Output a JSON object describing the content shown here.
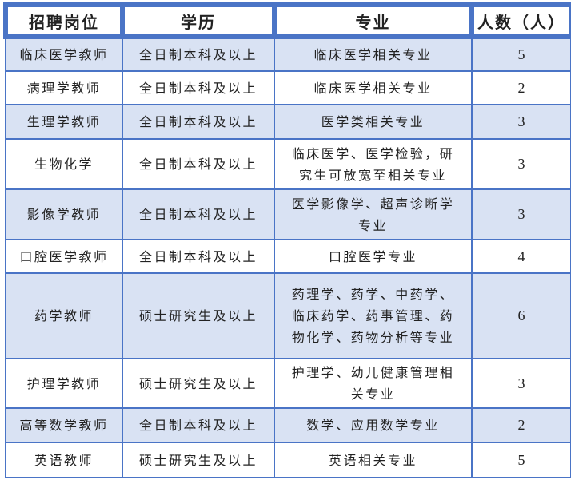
{
  "headers": [
    "招聘岗位",
    "学历",
    "专业",
    "人数（人）"
  ],
  "rows": [
    {
      "position": "临床医学教师",
      "education": "全日制本科及以上",
      "major": [
        "临床医学相关专业"
      ],
      "count": "5"
    },
    {
      "position": "病理学教师",
      "education": "全日制本科及以上",
      "major": [
        "临床医学相关专业"
      ],
      "count": "2"
    },
    {
      "position": "生理学教师",
      "education": "全日制本科及以上",
      "major": [
        "医学类相关专业"
      ],
      "count": "3"
    },
    {
      "position": "生物化学",
      "education": "全日制本科及以上",
      "major": [
        "临床医学、医学检验，研",
        "究生可放宽至相关专业"
      ],
      "count": "3"
    },
    {
      "position": "影像学教师",
      "education": "全日制本科及以上",
      "major": [
        "医学影像学、超声诊断学",
        "专业"
      ],
      "count": "3"
    },
    {
      "position": "口腔医学教师",
      "education": "全日制本科及以上",
      "major": [
        "口腔医学专业"
      ],
      "count": "4"
    },
    {
      "position": "药学教师",
      "education": "硕士研究生及以上",
      "major": [
        "药理学、药学、中药学、",
        "临床药学、药事管理、药",
        "物化学、药物分析等专业"
      ],
      "count": "6"
    },
    {
      "position": "护理学教师",
      "education": "硕士研究生及以上",
      "major": [
        "护理学、幼儿健康管理相",
        "关专业"
      ],
      "count": "3"
    },
    {
      "position": "高等数学教师",
      "education": "全日制本科及以上",
      "major": [
        "数学、应用数学专业"
      ],
      "count": "2"
    },
    {
      "position": "英语教师",
      "education": "硕士研究生及以上",
      "major": [
        "英语相关专业"
      ],
      "count": "5"
    }
  ],
  "colors": {
    "border": "#4a74c6",
    "alt_row": "#d9e2f3"
  }
}
